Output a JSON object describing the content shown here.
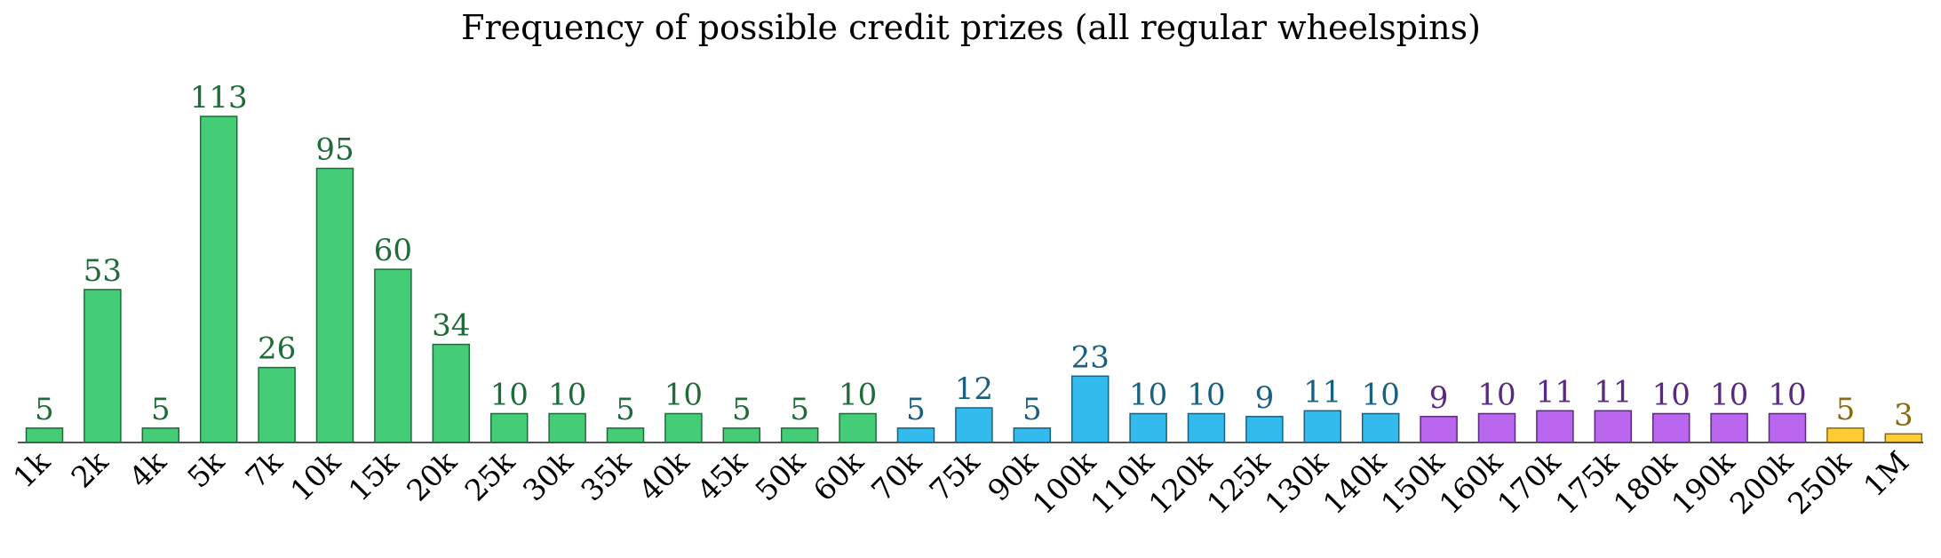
{
  "chart_data": {
    "type": "bar",
    "title": "Frequency of possible credit prizes (all regular wheelspins)",
    "xlabel": "",
    "ylabel": "",
    "ylim": [
      0,
      113
    ],
    "grid": false,
    "legend": "none",
    "categories": [
      "1k",
      "2k",
      "4k",
      "5k",
      "7k",
      "10k",
      "15k",
      "20k",
      "25k",
      "30k",
      "35k",
      "40k",
      "45k",
      "50k",
      "60k",
      "70k",
      "75k",
      "90k",
      "100k",
      "110k",
      "120k",
      "125k",
      "130k",
      "140k",
      "150k",
      "160k",
      "170k",
      "175k",
      "180k",
      "190k",
      "200k",
      "250k",
      "1M"
    ],
    "values": [
      5,
      53,
      5,
      113,
      26,
      95,
      60,
      34,
      10,
      10,
      5,
      10,
      5,
      5,
      10,
      5,
      12,
      5,
      23,
      10,
      10,
      9,
      11,
      10,
      9,
      10,
      11,
      11,
      10,
      10,
      10,
      5,
      3
    ],
    "tiers": [
      "green",
      "green",
      "green",
      "green",
      "green",
      "green",
      "green",
      "green",
      "green",
      "green",
      "green",
      "green",
      "green",
      "green",
      "green",
      "blue",
      "blue",
      "blue",
      "blue",
      "blue",
      "blue",
      "blue",
      "blue",
      "blue",
      "purple",
      "purple",
      "purple",
      "purple",
      "purple",
      "purple",
      "purple",
      "gold",
      "gold"
    ],
    "tier_colors": {
      "green": {
        "fill": "#44cc77",
        "stroke": "#1f6b3a",
        "label": "#1f6b3a"
      },
      "blue": {
        "fill": "#33bbee",
        "stroke": "#1a6080",
        "label": "#1a6080"
      },
      "purple": {
        "fill": "#bb66ee",
        "stroke": "#5a2a80",
        "label": "#5a2a80"
      },
      "gold": {
        "fill": "#ffcc33",
        "stroke": "#8a6a10",
        "label": "#8a6a10"
      }
    },
    "axis_color": "#555555"
  }
}
